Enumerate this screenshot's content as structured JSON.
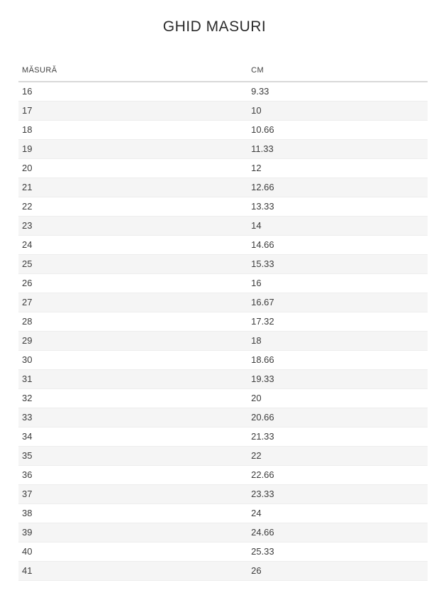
{
  "page": {
    "title": "GHID MASURI"
  },
  "table": {
    "headers": {
      "size": "MĂSURĂ",
      "cm": "CM"
    },
    "rows": [
      {
        "size": "16",
        "cm": "9.33"
      },
      {
        "size": "17",
        "cm": "10"
      },
      {
        "size": "18",
        "cm": "10.66"
      },
      {
        "size": "19",
        "cm": "11.33"
      },
      {
        "size": "20",
        "cm": "12"
      },
      {
        "size": "21",
        "cm": "12.66"
      },
      {
        "size": "22",
        "cm": "13.33"
      },
      {
        "size": "23",
        "cm": "14"
      },
      {
        "size": "24",
        "cm": "14.66"
      },
      {
        "size": "25",
        "cm": "15.33"
      },
      {
        "size": "26",
        "cm": "16"
      },
      {
        "size": "27",
        "cm": "16.67"
      },
      {
        "size": "28",
        "cm": "17.32"
      },
      {
        "size": "29",
        "cm": "18"
      },
      {
        "size": "30",
        "cm": "18.66"
      },
      {
        "size": "31",
        "cm": "19.33"
      },
      {
        "size": "32",
        "cm": "20"
      },
      {
        "size": "33",
        "cm": "20.66"
      },
      {
        "size": "34",
        "cm": "21.33"
      },
      {
        "size": "35",
        "cm": "22"
      },
      {
        "size": "36",
        "cm": "22.66"
      },
      {
        "size": "37",
        "cm": "23.33"
      },
      {
        "size": "38",
        "cm": "24"
      },
      {
        "size": "39",
        "cm": "24.66"
      },
      {
        "size": "40",
        "cm": "25.33"
      },
      {
        "size": "41",
        "cm": "26"
      }
    ]
  },
  "colors": {
    "stripe": "#f5f5f5",
    "header_border": "#d8d8d8",
    "row_border": "#ededed",
    "title_text": "#2b2b2b",
    "cell_text": "#3c3c3c"
  }
}
